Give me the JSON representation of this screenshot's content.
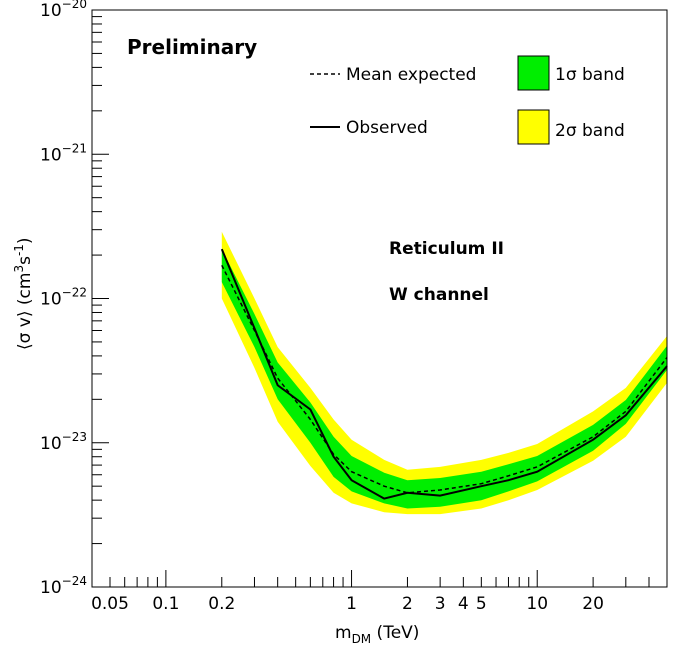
{
  "chart_data": {
    "type": "line",
    "title": "",
    "xlabel_main": "m",
    "xlabel_sub": "DM",
    "xlabel_unit": " (TeV)",
    "ylabel_text": "⟨σ v⟩ (cm",
    "ylabel_sup1": "3",
    "ylabel_mid": "s",
    "ylabel_sup2": "-1",
    "ylabel_close": ")",
    "x_log": true,
    "y_log": true,
    "xlim": [
      0.04,
      50
    ],
    "ylim": [
      1e-24,
      1e-20
    ],
    "x_ticklabels": [
      {
        "v": 0.05,
        "t": "0.05"
      },
      {
        "v": 0.1,
        "t": "0.1"
      },
      {
        "v": 0.2,
        "t": "0.2"
      },
      {
        "v": 1,
        "t": "1"
      },
      {
        "v": 2,
        "t": "2"
      },
      {
        "v": 3,
        "t": "3"
      },
      {
        "v": 4,
        "t": "4"
      },
      {
        "v": 5,
        "t": "5"
      },
      {
        "v": 10,
        "t": "10"
      },
      {
        "v": 20,
        "t": "20"
      }
    ],
    "y_ticklabels": [
      {
        "exp": -24,
        "base": "10",
        "sup": "−24"
      },
      {
        "exp": -23,
        "base": "10",
        "sup": "−23"
      },
      {
        "exp": -22,
        "base": "10",
        "sup": "−22"
      },
      {
        "exp": -21,
        "base": "10",
        "sup": "−21"
      },
      {
        "exp": -20,
        "base": "10",
        "sup": "−20"
      }
    ],
    "annotations": {
      "preliminary": "Preliminary",
      "target": "Reticulum II",
      "channel": "W channel"
    },
    "legend": {
      "position": "top-right",
      "mean": "Mean expected",
      "observed": "Observed",
      "band1": "1σ band",
      "band2": "2σ band"
    },
    "colors": {
      "band1": "#00ee00",
      "band2": "#ffff00",
      "line": "#000000"
    },
    "mass": [
      0.2,
      0.3,
      0.4,
      0.6,
      0.8,
      1.0,
      1.5,
      2.0,
      3.0,
      5.0,
      7.0,
      10.0,
      20.0,
      30.0,
      50.0
    ],
    "mean_expected": [
      1.7e-22,
      6e-23,
      2.8e-23,
      1.45e-23,
      8.3e-24,
      6.3e-24,
      5e-24,
      4.5e-24,
      4.7e-24,
      5.2e-24,
      5.9e-24,
      6.8e-24,
      1.1e-23,
      1.65e-23,
      3.9e-23
    ],
    "sigma1_low": [
      1.3e-22,
      4.6e-23,
      2e-23,
      1e-23,
      5.8e-24,
      4.6e-24,
      3.8e-24,
      3.5e-24,
      3.6e-24,
      4e-24,
      4.6e-24,
      5.4e-24,
      8.8e-24,
      1.35e-23,
      3.2e-23
    ],
    "sigma1_high": [
      2.2e-22,
      7.8e-23,
      3.6e-23,
      1.9e-23,
      1.1e-23,
      8.1e-24,
      6.2e-24,
      5.5e-24,
      5.7e-24,
      6.3e-24,
      7.1e-24,
      8.1e-24,
      1.33e-23,
      1.98e-23,
      4.7e-23
    ],
    "sigma2_low": [
      1e-22,
      3.3e-23,
      1.4e-23,
      6.9e-24,
      4.5e-24,
      3.8e-24,
      3.3e-24,
      3.2e-24,
      3.2e-24,
      3.5e-24,
      4e-24,
      4.7e-24,
      7.5e-24,
      1.1e-23,
      2.6e-23
    ],
    "sigma2_high": [
      2.9e-22,
      1e-22,
      4.6e-23,
      2.4e-23,
      1.45e-23,
      1.05e-23,
      7.6e-24,
      6.5e-24,
      6.8e-24,
      7.6e-24,
      8.5e-24,
      9.8e-24,
      1.65e-23,
      2.4e-23,
      5.5e-23
    ],
    "observed": [
      2.2e-22,
      6.2e-23,
      2.5e-23,
      1.7e-23,
      8e-24,
      5.5e-24,
      4.1e-24,
      4.5e-24,
      4.3e-24,
      5e-24,
      5.5e-24,
      6.3e-24,
      1.05e-23,
      1.55e-23,
      3.4e-23
    ]
  }
}
